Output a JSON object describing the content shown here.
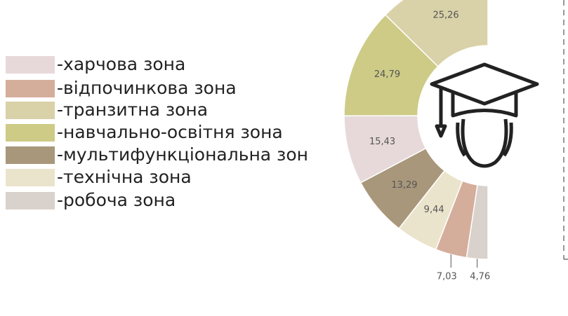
{
  "chart_data": {
    "type": "pie",
    "categories": [
      "-харчова зона",
      "-відпочинкова зона",
      "-транзитна зона",
      "-навчально-освітня зона",
      "-мультифункціональна зон",
      "-технічна зона",
      "-робоча зона"
    ],
    "values": [
      15.43,
      7.03,
      25.26,
      24.79,
      13.29,
      9.44,
      4.76
    ],
    "value_labels": [
      "15,43",
      "7,03",
      "25,26",
      "24,79",
      "13,29",
      "9,44",
      "4,76"
    ],
    "colors": [
      "#e7d9da",
      "#d5ad9b",
      "#d9d1a8",
      "#cdcb86",
      "#a8977b",
      "#ebe4cc",
      "#d9d1cb"
    ]
  }
}
